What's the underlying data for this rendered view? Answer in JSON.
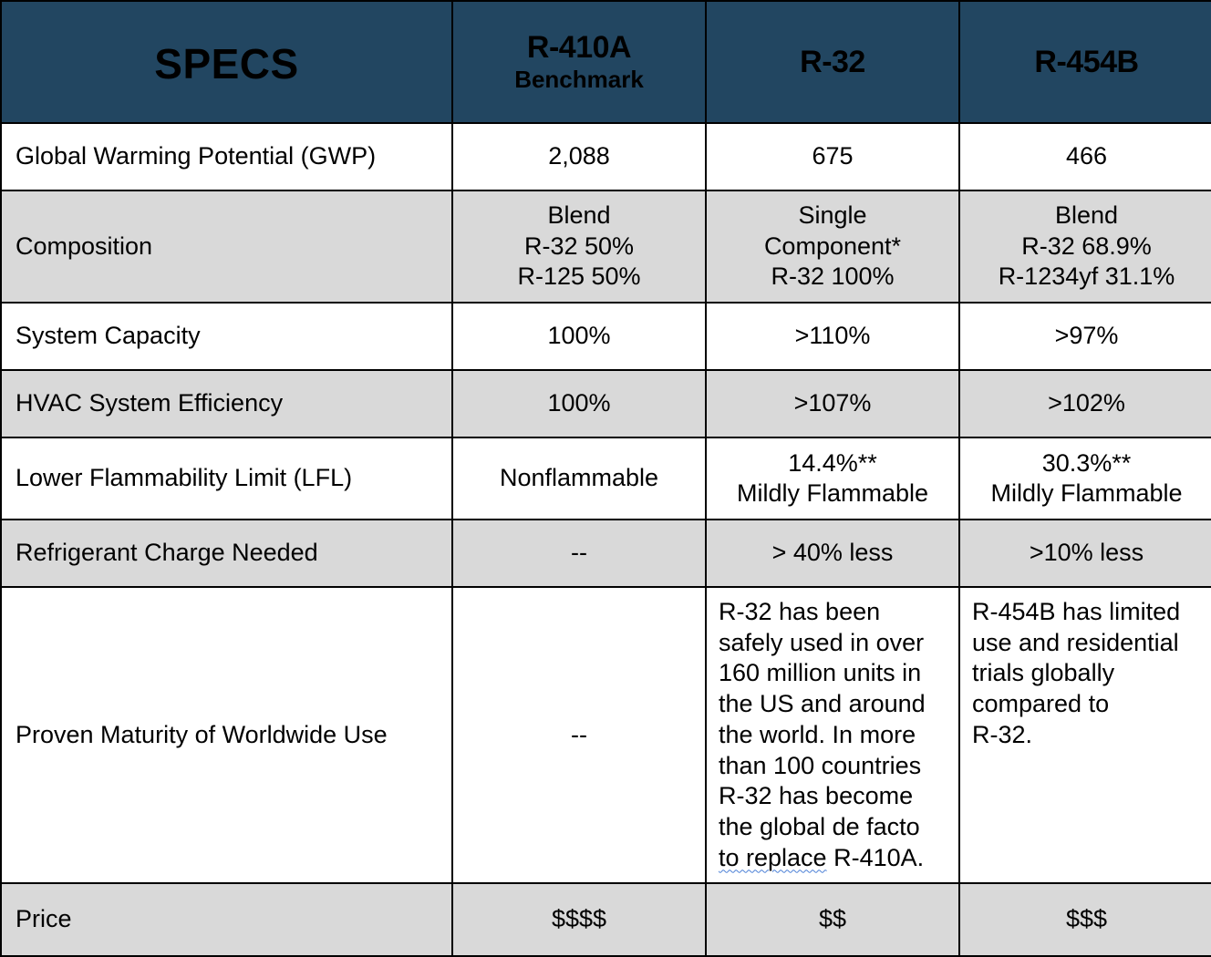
{
  "colors": {
    "header_bg": "#224661",
    "row_white": "#ffffff",
    "row_gray": "#d9d9d9",
    "border": "#000000",
    "spellcheck_underline": "#4a7fd6"
  },
  "header": {
    "specs": "SPECS",
    "columns": [
      {
        "title": "R-410A",
        "subtitle": "Benchmark"
      },
      {
        "title": "R-32",
        "subtitle": ""
      },
      {
        "title": "R-454B",
        "subtitle": ""
      }
    ]
  },
  "rows": [
    {
      "label": "Global Warming Potential (GWP)",
      "values": [
        [
          "2,088"
        ],
        [
          "675"
        ],
        [
          "466"
        ]
      ]
    },
    {
      "label": "Composition",
      "values": [
        [
          "Blend",
          "R-32 50%",
          "R-125 50%"
        ],
        [
          "Single",
          "Component*",
          "R-32 100%"
        ],
        [
          "Blend",
          "R-32 68.9%",
          "R-1234yf 31.1%"
        ]
      ]
    },
    {
      "label": "System Capacity",
      "values": [
        [
          "100%"
        ],
        [
          ">110%"
        ],
        [
          ">97%"
        ]
      ]
    },
    {
      "label": "HVAC System Efficiency",
      "values": [
        [
          "100%"
        ],
        [
          ">107%"
        ],
        [
          ">102%"
        ]
      ]
    },
    {
      "label": "Lower Flammability Limit (LFL)",
      "values": [
        [
          "Nonflammable"
        ],
        [
          "14.4%**",
          "Mildly Flammable"
        ],
        [
          "30.3%**",
          "Mildly Flammable"
        ]
      ]
    },
    {
      "label": "Refrigerant Charge Needed",
      "values": [
        [
          "--"
        ],
        [
          "> 40% less"
        ],
        [
          ">10% less"
        ]
      ]
    },
    {
      "label": "Proven Maturity of Worldwide Use",
      "values": [
        [
          "--"
        ],
        [
          "R-32 has been",
          "safely used in over",
          "160 million units in",
          "the US and around",
          "the world. In more",
          "than 100 countries",
          "R-32 has become",
          "the global de facto",
          "to replace",
          " R-410A."
        ],
        [
          "R-454B has limited",
          "use and residential",
          "trials globally",
          "compared to",
          "R-32."
        ]
      ]
    },
    {
      "label": "Price",
      "values": [
        [
          "$$$$"
        ],
        [
          "$$"
        ],
        [
          "$$$"
        ]
      ]
    }
  ]
}
